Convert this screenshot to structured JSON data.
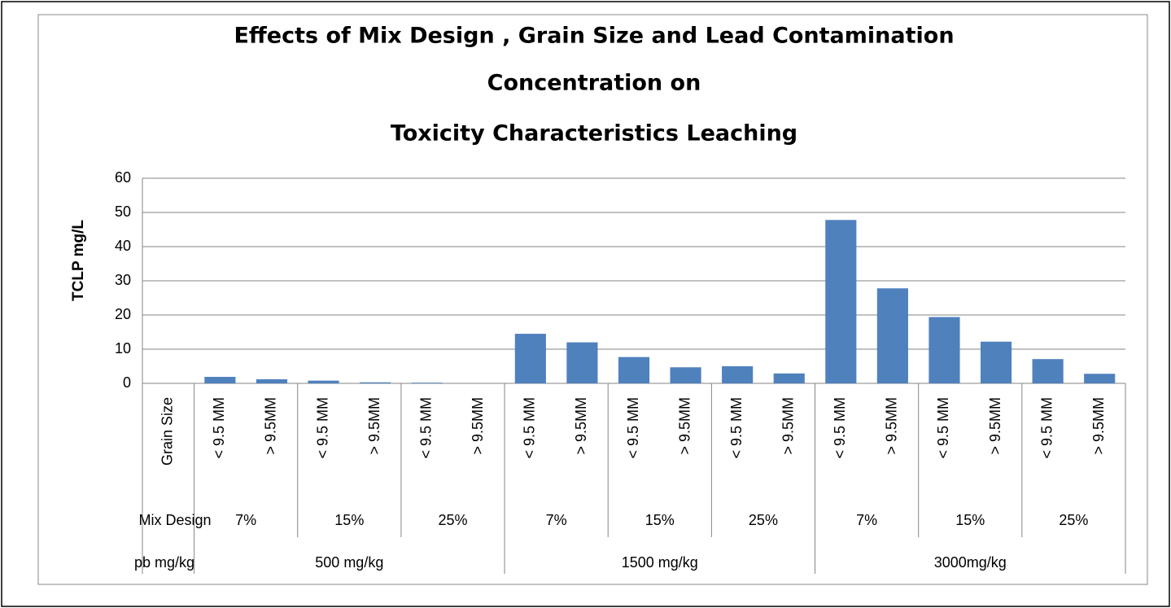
{
  "chart_data": {
    "type": "bar",
    "title": [
      "Effects of Mix Design , Grain Size and Lead  Contamination",
      "Concentration on",
      "Toxicity Characteristics Leaching"
    ],
    "y_label": "TCLP mg/L",
    "categories": [
      "Grain Size",
      "< 9.5 MM",
      "> 9.5MM",
      "< 9.5 MM",
      "> 9.5MM",
      "< 9.5 MM",
      "> 9.5MM",
      "< 9.5 MM",
      "> 9.5MM",
      "< 9.5 MM",
      "> 9.5MM",
      "< 9.5 MM",
      "> 9.5MM",
      "< 9.5 MM",
      "> 9.5MM",
      "< 9.5 MM",
      "> 9.5MM",
      "< 9.5 MM",
      "> 9.5MM"
    ],
    "values": [
      null,
      1.9,
      1.2,
      0.8,
      0.3,
      0.2,
      0,
      14.5,
      12,
      7.7,
      4.7,
      5,
      2.9,
      47.8,
      27.8,
      19.4,
      12.2,
      7.1,
      2.8
    ],
    "mix_design": {
      "label": "Mix Design",
      "groups": [
        "7%",
        "15%",
        "25%",
        "7%",
        "15%",
        "25%",
        "7%",
        "15%",
        "25%"
      ]
    },
    "pb": {
      "label": "pb  mg/kg",
      "groups": [
        "500 mg/kg",
        "1500 mg/kg",
        "3000mg/kg"
      ]
    },
    "color": "#4f81bd",
    "ylim": [
      0,
      60
    ],
    "yticks": [
      0,
      10,
      20,
      30,
      40,
      50,
      60
    ],
    "grid": true
  }
}
